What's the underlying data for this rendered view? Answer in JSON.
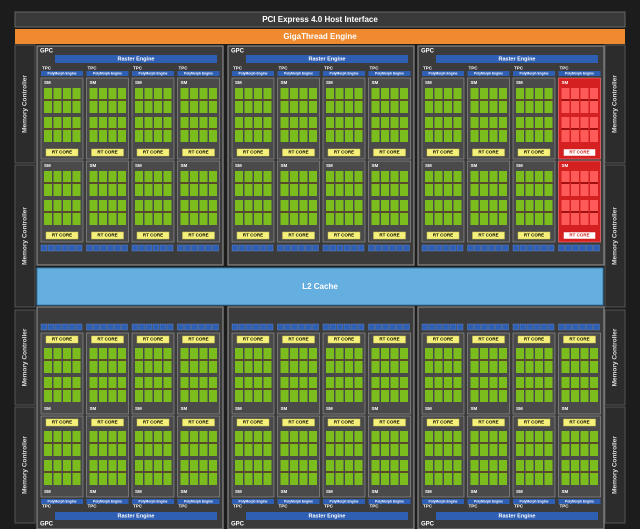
{
  "header": {
    "pcie": "PCI Express 4.0 Host Interface",
    "gigathread": "GigaThread Engine"
  },
  "l2_cache": "L2 Cache",
  "memory_controllers": [
    "Memory Controller",
    "Memory Controller",
    "Memory Controller",
    "Memory Controller",
    "Memory Controller",
    "Memory Controller",
    "Memory Controller",
    "Memory Controller"
  ],
  "gpcs": [
    {
      "label": "GPC",
      "raster_engine": "Raster Engine",
      "tpcs": [
        {
          "label": "TPC",
          "polymorph_engine": "PolyMorph Engine",
          "sms": [
            {
              "label": "SM",
              "rt_core": "RT CORE"
            },
            {
              "label": "SM",
              "rt_core": "RT CORE"
            }
          ]
        },
        {
          "label": "TPC",
          "polymorph_engine": "PolyMorph Engine",
          "sms": [
            {
              "label": "SM",
              "rt_core": "RT CORE"
            },
            {
              "label": "SM",
              "rt_core": "RT CORE"
            }
          ]
        },
        {
          "label": "TPC",
          "polymorph_engine": "PolyMorph Engine",
          "sms": [
            {
              "label": "SM",
              "rt_core": "RT CORE"
            },
            {
              "label": "SM",
              "rt_core": "RT CORE"
            }
          ]
        },
        {
          "label": "TPC",
          "polymorph_engine": "PolyMorph Engine",
          "sms": [
            {
              "label": "SM",
              "rt_core": "RT CORE"
            },
            {
              "label": "SM",
              "rt_core": "RT CORE"
            }
          ]
        }
      ]
    },
    {
      "label": "GPC",
      "raster_engine": "Raster Engine",
      "tpcs": [
        {
          "label": "TPC",
          "polymorph_engine": "PolyMorph Engine",
          "sms": [
            {
              "label": "SM",
              "rt_core": "RT CORE"
            },
            {
              "label": "SM",
              "rt_core": "RT CORE"
            }
          ]
        },
        {
          "label": "TPC",
          "polymorph_engine": "PolyMorph Engine",
          "sms": [
            {
              "label": "SM",
              "rt_core": "RT CORE"
            },
            {
              "label": "SM",
              "rt_core": "RT CORE"
            }
          ]
        },
        {
          "label": "TPC",
          "polymorph_engine": "PolyMorph Engine",
          "sms": [
            {
              "label": "SM",
              "rt_core": "RT CORE"
            },
            {
              "label": "SM",
              "rt_core": "RT CORE"
            }
          ]
        },
        {
          "label": "TPC",
          "polymorph_engine": "PolyMorph Engine",
          "sms": [
            {
              "label": "SM",
              "rt_core": "RT CORE"
            },
            {
              "label": "SM",
              "rt_core": "RT CORE"
            }
          ]
        }
      ]
    },
    {
      "label": "GPC",
      "raster_engine": "Raster Engine",
      "tpcs": [
        {
          "label": "TPC",
          "polymorph_engine": "PolyMorph Engine",
          "sms": [
            {
              "label": "SM",
              "rt_core": "RT CORE"
            },
            {
              "label": "SM",
              "rt_core": "RT CORE"
            }
          ]
        },
        {
          "label": "TPC",
          "polymorph_engine": "PolyMorph Engine",
          "sms": [
            {
              "label": "SM",
              "rt_core": "RT CORE"
            },
            {
              "label": "SM",
              "rt_core": "RT CORE"
            }
          ]
        },
        {
          "label": "TPC",
          "polymorph_engine": "PolyMorph Engine",
          "sms": [
            {
              "label": "SM",
              "rt_core": "RT CORE"
            },
            {
              "label": "SM",
              "rt_core": "RT CORE"
            }
          ]
        },
        {
          "label": "TPC",
          "polymorph_engine": "PolyMorph Engine",
          "color": "#d42020",
          "sms": [
            {
              "label": "SM",
              "rt_core": "RT CORE"
            },
            {
              "label": "SM",
              "rt_core": "RT CORE"
            }
          ]
        }
      ]
    },
    {
      "label": "GPC",
      "raster_engine": "Raster Engine",
      "tpcs": [
        {
          "label": "TPC",
          "polymorph_engine": "PolyMorph Engine",
          "sms": [
            {
              "label": "SM",
              "rt_core": "RT CORE"
            },
            {
              "label": "SM",
              "rt_core": "RT CORE"
            }
          ]
        },
        {
          "label": "TPC",
          "polymorph_engine": "PolyMorph Engine",
          "sms": [
            {
              "label": "SM",
              "rt_core": "RT CORE"
            },
            {
              "label": "SM",
              "rt_core": "RT CORE"
            }
          ]
        },
        {
          "label": "TPC",
          "polymorph_engine": "PolyMorph Engine",
          "sms": [
            {
              "label": "SM",
              "rt_core": "RT CORE"
            },
            {
              "label": "SM",
              "rt_core": "RT CORE"
            }
          ]
        },
        {
          "label": "TPC",
          "polymorph_engine": "PolyMorph Engine",
          "sms": [
            {
              "label": "SM",
              "rt_core": "RT CORE"
            },
            {
              "label": "SM",
              "rt_core": "RT CORE"
            }
          ]
        }
      ]
    },
    {
      "label": "GPC",
      "raster_engine": "Raster Engine",
      "tpcs": [
        {
          "label": "TPC",
          "polymorph_engine": "PolyMorph Engine",
          "sms": [
            {
              "label": "SM",
              "rt_core": "RT CORE"
            },
            {
              "label": "SM",
              "rt_core": "RT CORE"
            }
          ]
        },
        {
          "label": "TPC",
          "polymorph_engine": "PolyMorph Engine",
          "sms": [
            {
              "label": "SM",
              "rt_core": "RT CORE"
            },
            {
              "label": "SM",
              "rt_core": "RT CORE"
            }
          ]
        },
        {
          "label": "TPC",
          "polymorph_engine": "PolyMorph Engine",
          "sms": [
            {
              "label": "SM",
              "rt_core": "RT CORE"
            },
            {
              "label": "SM",
              "rt_core": "RT CORE"
            }
          ]
        },
        {
          "label": "TPC",
          "polymorph_engine": "PolyMorph Engine",
          "sms": [
            {
              "label": "SM",
              "rt_core": "RT CORE"
            },
            {
              "label": "SM",
              "rt_core": "RT CORE"
            }
          ]
        }
      ]
    },
    {
      "label": "GPC",
      "raster_engine": "Raster Engine",
      "tpcs": [
        {
          "label": "TPC",
          "polymorph_engine": "PolyMorph Engine",
          "sms": [
            {
              "label": "SM",
              "rt_core": "RT CORE"
            },
            {
              "label": "SM",
              "rt_core": "RT CORE"
            }
          ]
        },
        {
          "label": "TPC",
          "polymorph_engine": "PolyMorph Engine",
          "sms": [
            {
              "label": "SM",
              "rt_core": "RT CORE"
            },
            {
              "label": "SM",
              "rt_core": "RT CORE"
            }
          ]
        },
        {
          "label": "TPC",
          "polymorph_engine": "PolyMorph Engine",
          "sms": [
            {
              "label": "SM",
              "rt_core": "RT CORE"
            },
            {
              "label": "SM",
              "rt_core": "RT CORE"
            }
          ]
        },
        {
          "label": "TPC",
          "polymorph_engine": "PolyMorph Engine",
          "sms": [
            {
              "label": "SM",
              "rt_core": "RT CORE"
            },
            {
              "label": "SM",
              "rt_core": "RT CORE"
            }
          ]
        }
      ]
    }
  ]
}
